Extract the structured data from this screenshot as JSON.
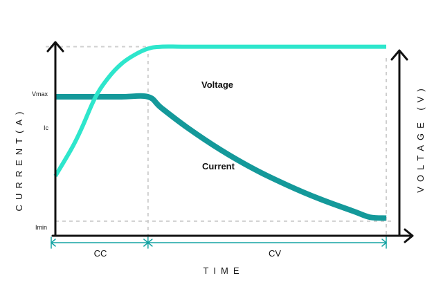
{
  "chart_data": {
    "type": "line",
    "title": "",
    "xlabel": "TIME",
    "ylabel_left": "CURRENT(A)",
    "ylabel_right": "VOLTAGE (V)",
    "y_ticks": [
      "Vmax",
      "Ic",
      "Imin"
    ],
    "xlim": [
      0,
      1
    ],
    "ylim": [
      0,
      1
    ],
    "levels": {
      "Vmax": 0.905,
      "Ic": 0.655,
      "Imin": 0.035
    },
    "phase_boundary_x": 0.28,
    "end_x": 1.0,
    "phases": [
      {
        "label": "CC",
        "x_start": 0.0,
        "x_end": 0.28
      },
      {
        "label": "CV",
        "x_start": 0.28,
        "x_end": 1.0
      }
    ],
    "series": [
      {
        "name": "Voltage",
        "color": "#2ee6cc",
        "x": [
          0.0,
          0.05,
          0.08,
          0.12,
          0.16,
          0.2,
          0.24,
          0.28,
          0.32,
          0.4,
          0.6,
          0.8,
          1.0
        ],
        "y": [
          0.26,
          0.4,
          0.5,
          0.65,
          0.75,
          0.82,
          0.865,
          0.895,
          0.905,
          0.905,
          0.905,
          0.905,
          0.905
        ]
      },
      {
        "name": "Current",
        "color": "#14999a",
        "x": [
          0.0,
          0.1,
          0.2,
          0.28,
          0.32,
          0.4,
          0.5,
          0.6,
          0.7,
          0.8,
          0.9,
          0.95,
          1.0
        ],
        "y": [
          0.655,
          0.655,
          0.655,
          0.655,
          0.6,
          0.5,
          0.39,
          0.295,
          0.215,
          0.145,
          0.085,
          0.055,
          0.05
        ]
      }
    ],
    "grid": false,
    "legend": "none"
  },
  "colors": {
    "axis": "#111111",
    "dashed": "#cfcfcf",
    "phase_arrow": "#14a3a3"
  }
}
